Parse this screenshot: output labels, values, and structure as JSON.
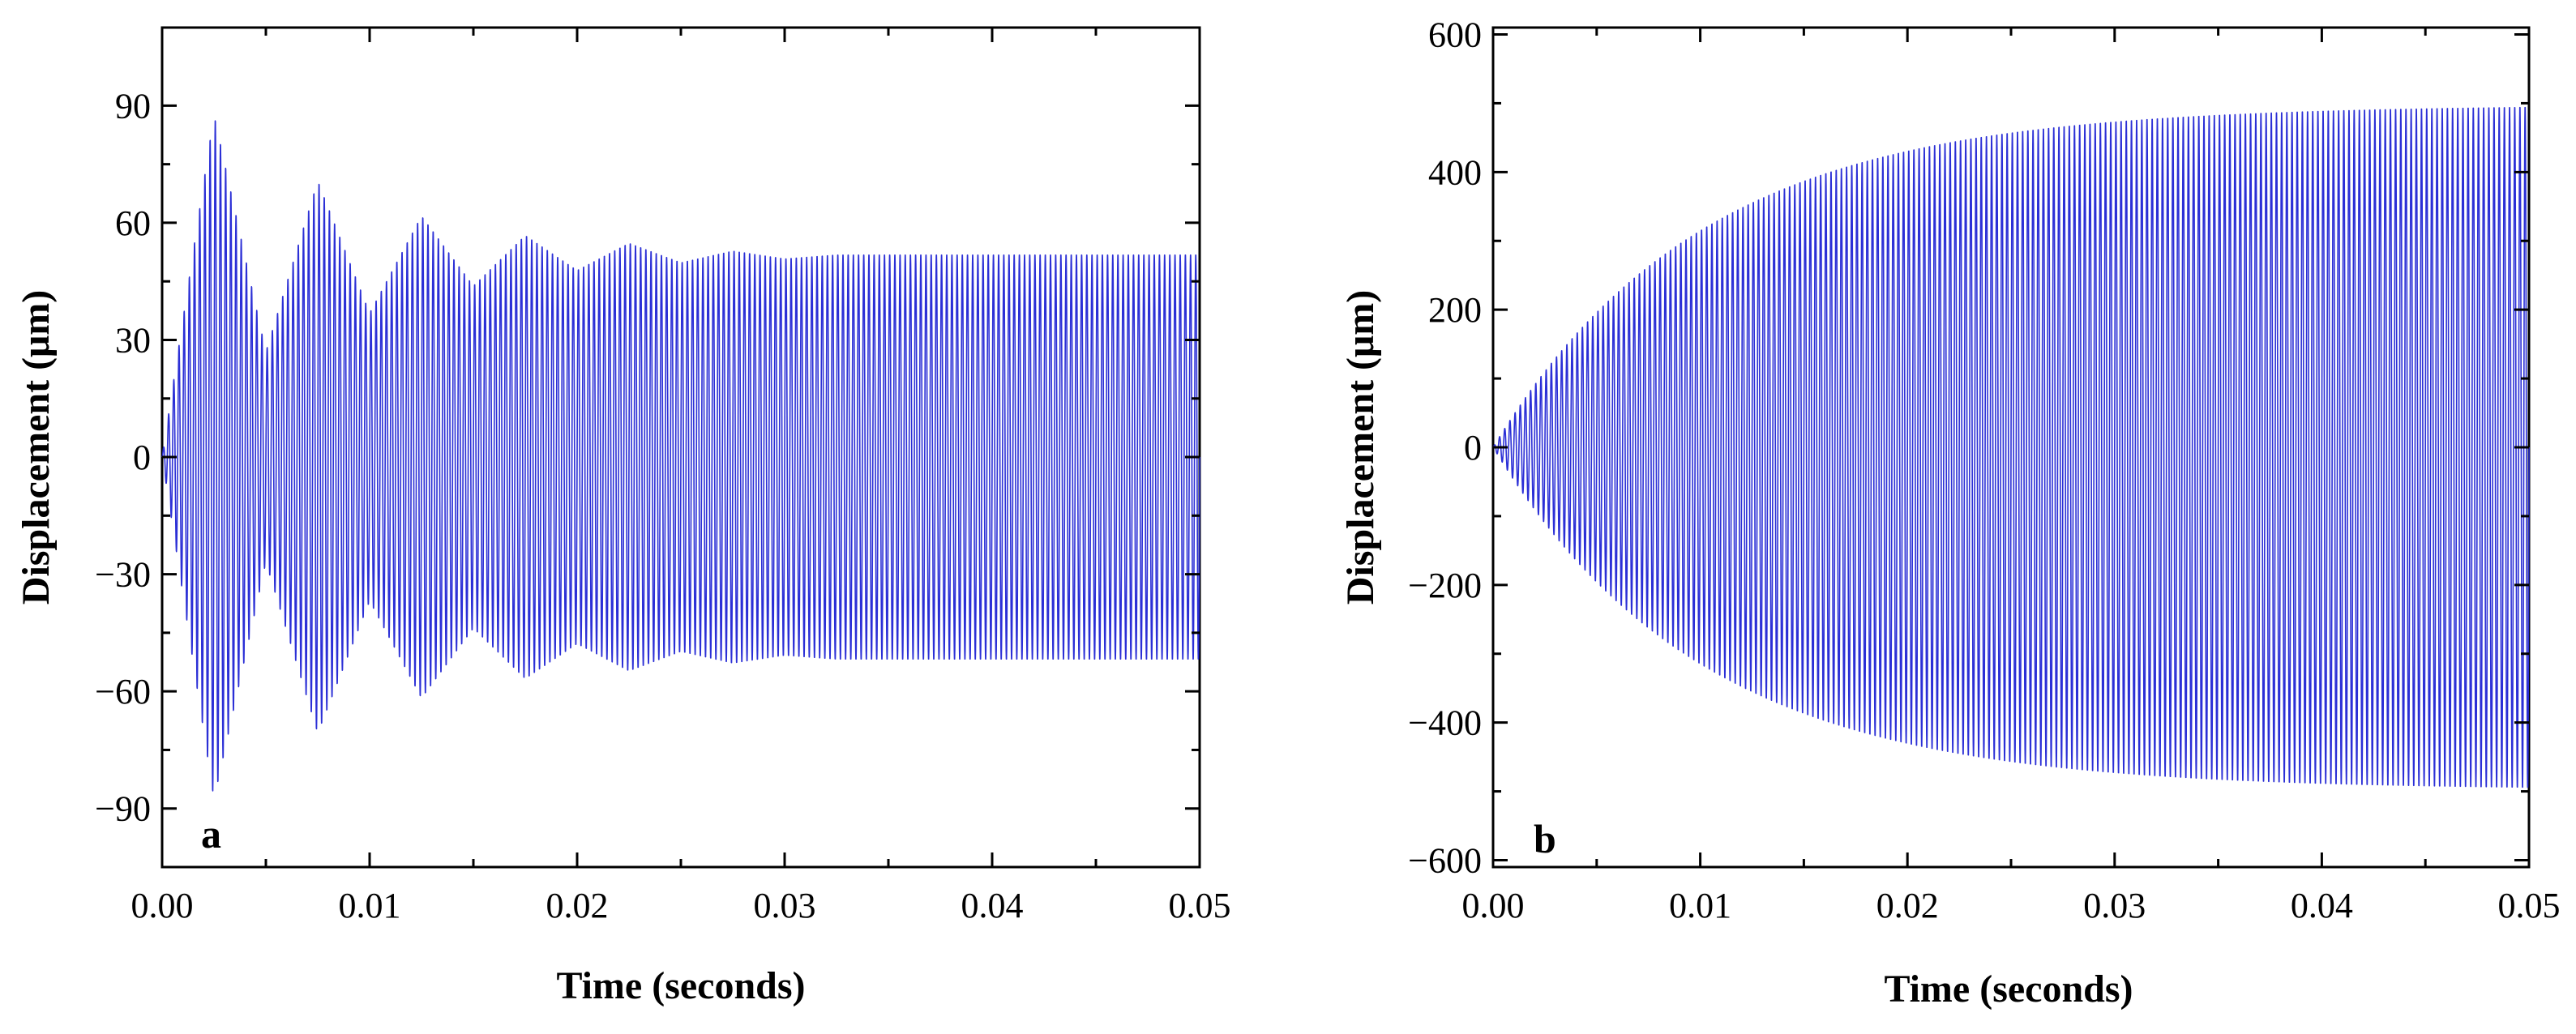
{
  "colors": {
    "trace": "#2b2fd6",
    "axis": "#000000",
    "background": "#ffffff"
  },
  "chart_data": [
    {
      "id": "a",
      "type": "line",
      "panel_label": "a",
      "title": "",
      "xlabel": "Time (seconds)",
      "ylabel": "Displacement (μm)",
      "xlim": [
        0.0,
        0.05
      ],
      "ylim": [
        -105,
        110
      ],
      "xticks": [
        0.0,
        0.01,
        0.02,
        0.03,
        0.04,
        0.05
      ],
      "xtick_labels": [
        "0.00",
        "0.01",
        "0.02",
        "0.03",
        "0.04",
        "0.05"
      ],
      "yticks": [
        -90,
        -60,
        -30,
        0,
        30,
        60,
        90
      ],
      "ytick_labels": [
        "−90",
        "−60",
        "−30",
        "0",
        "30",
        "60",
        "90"
      ],
      "series": [
        {
          "name": "displacement",
          "description": "beating oscillation decaying to steady state",
          "envelope_peaks_x": [
            0.0025,
            0.0075,
            0.0125,
            0.0175,
            0.0225,
            0.0275,
            0.0325,
            0.05
          ],
          "envelope_peaks_y": [
            88,
            71,
            62,
            57,
            55,
            53,
            52,
            52
          ],
          "envelope_valleys_x": [
            0.005,
            0.01,
            0.015,
            0.02,
            0.025,
            0.03
          ],
          "envelope_valleys_y": [
            27,
            37,
            44,
            48,
            50,
            51
          ],
          "steady_amplitude": 52,
          "cycles_in_window": 200
        }
      ]
    },
    {
      "id": "b",
      "type": "line",
      "panel_label": "b",
      "title": "",
      "xlabel": "Time (seconds)",
      "ylabel": "Displacement (μm)",
      "xlim": [
        0.0,
        0.05
      ],
      "ylim": [
        -610,
        610
      ],
      "xticks": [
        0.0,
        0.01,
        0.02,
        0.03,
        0.04,
        0.05
      ],
      "xtick_labels": [
        "0.00",
        "0.01",
        "0.02",
        "0.03",
        "0.04",
        "0.05"
      ],
      "yticks": [
        -600,
        -400,
        -200,
        0,
        200,
        400,
        600
      ],
      "ytick_labels": [
        "−600",
        "−400",
        "−200",
        "0",
        "200",
        "400",
        "600"
      ],
      "series": [
        {
          "name": "displacement",
          "description": "resonant growth to steady amplitude",
          "steady_amplitude": 500,
          "growth_time_constant": 0.01,
          "cycles_in_window": 200
        }
      ]
    }
  ]
}
